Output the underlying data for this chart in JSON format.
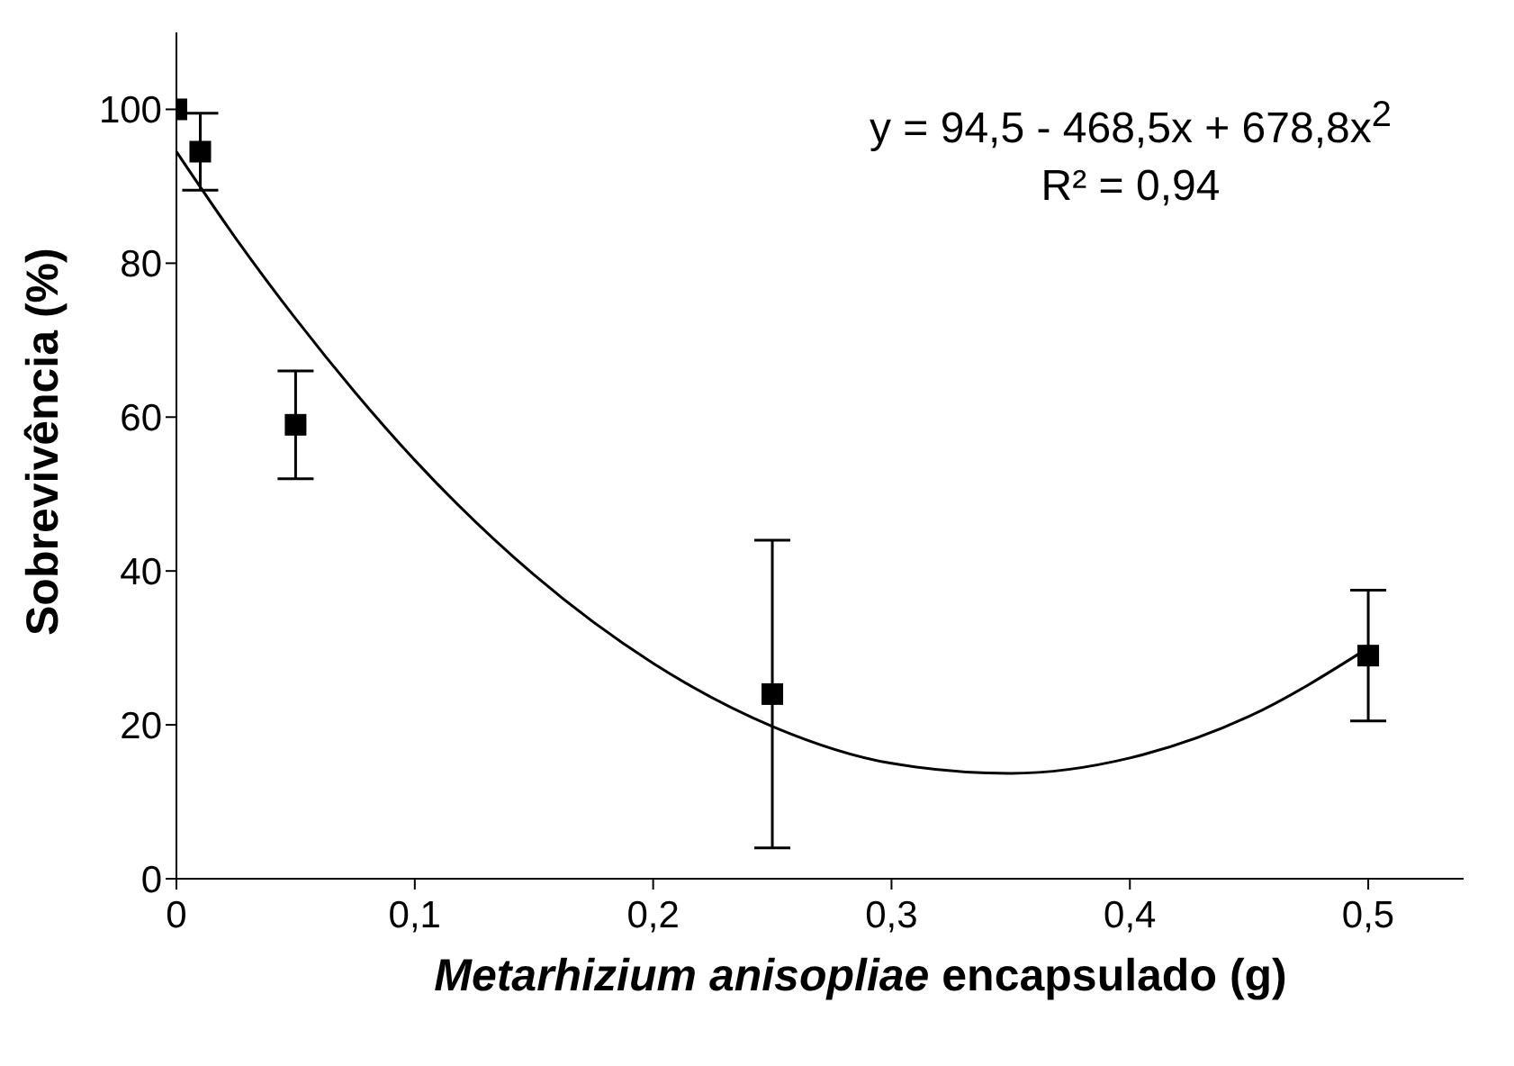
{
  "chart_data": {
    "type": "scatter",
    "xlabel": "Metarhizium anisopliae encapsulado (g)",
    "ylabel": "Sobrevivência (%)",
    "annotations": [
      "y = 94,5 - 468,5x + 678,8x$^{2}$",
      "R² = 0,94"
    ],
    "xlim": [
      0,
      0.54
    ],
    "xticks": [
      0,
      {
        "value": 0.1,
        "label": "0,1"
      },
      {
        "value": 0.2,
        "label": "0,2"
      },
      {
        "value": 0.3,
        "label": "0,3"
      },
      {
        "value": 0.4,
        "label": "0,4"
      },
      {
        "value": 0.5,
        "label": "0,5"
      }
    ],
    "ylim": [
      0,
      110
    ],
    "yticks": [
      0,
      20,
      40,
      60,
      80,
      100
    ],
    "series": [
      {
        "marker": "square",
        "color": "#000000",
        "x": [
          0,
          0.01,
          0.05,
          0.25,
          0.5
        ],
        "values": [
          100,
          94.5,
          59,
          24,
          29
        ],
        "errors": [
          null,
          5,
          7,
          20,
          8.5
        ]
      },
      {
        "type": "line",
        "color": "#000000",
        "line_style": "solid",
        "x": [
          0,
          0.025,
          0.05,
          0.075,
          0.1,
          0.15,
          0.2,
          0.25,
          0.3,
          0.35,
          0.4,
          0.45,
          0.5
        ],
        "values": [
          94.5,
          83.2,
          72.8,
          63.2,
          54.4,
          39.5,
          28,
          19.8,
          15,
          13.7,
          15.7,
          21.1,
          30
        ]
      }
    ]
  }
}
